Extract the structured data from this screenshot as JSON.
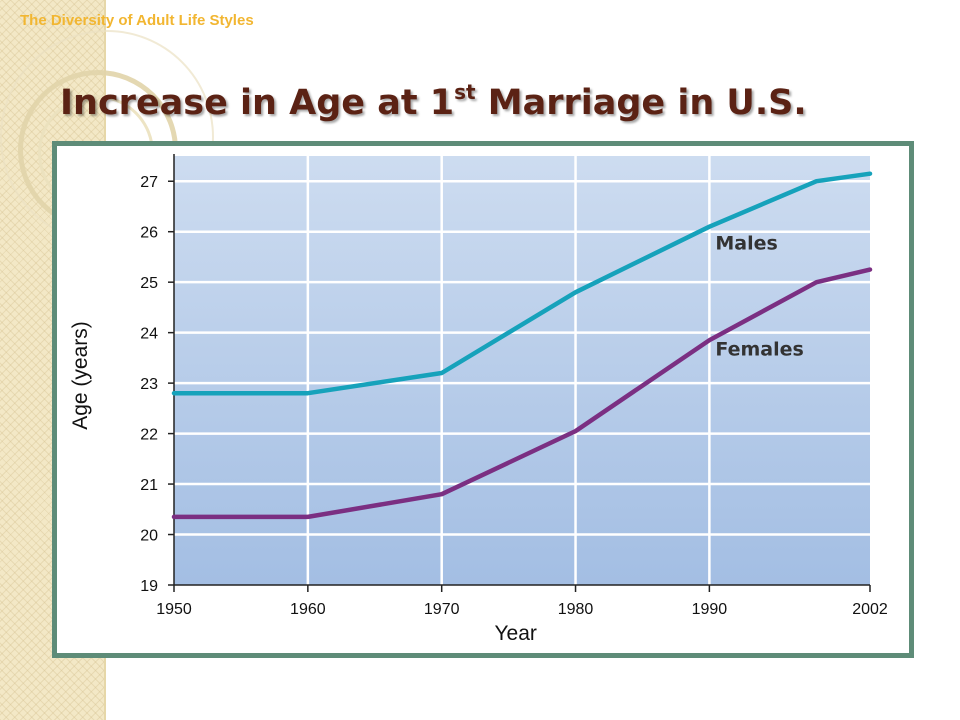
{
  "slide": {
    "subtitle": "The Diversity of Adult Life Styles",
    "title_main": "Increase in Age at 1",
    "title_sup": "st",
    "title_end": " Marriage in U.S."
  },
  "colors": {
    "males": "#16a2bb",
    "females": "#7b2f82",
    "frame": "#5e8c78",
    "title": "#5b2214",
    "subtitle": "#f2b631"
  },
  "chart_data": {
    "type": "line",
    "title": "",
    "xlabel": "Year",
    "ylabel": "Age (years)",
    "xlim": [
      1950,
      2002
    ],
    "ylim": [
      19,
      27.5
    ],
    "x_ticks": [
      1950,
      1960,
      1970,
      1980,
      1990,
      2002
    ],
    "y_ticks": [
      19,
      20,
      21,
      22,
      23,
      24,
      25,
      26,
      27
    ],
    "grid": true,
    "series": [
      {
        "name": "Males",
        "x": [
          1950,
          1960,
          1970,
          1980,
          1990,
          1998,
          2002
        ],
        "values": [
          22.8,
          22.8,
          23.2,
          24.8,
          26.1,
          27.0,
          27.15
        ]
      },
      {
        "name": "Females",
        "x": [
          1950,
          1960,
          1970,
          1980,
          1990,
          1998,
          2002
        ],
        "values": [
          20.35,
          20.35,
          20.8,
          22.05,
          23.85,
          25.0,
          25.25
        ]
      }
    ]
  }
}
